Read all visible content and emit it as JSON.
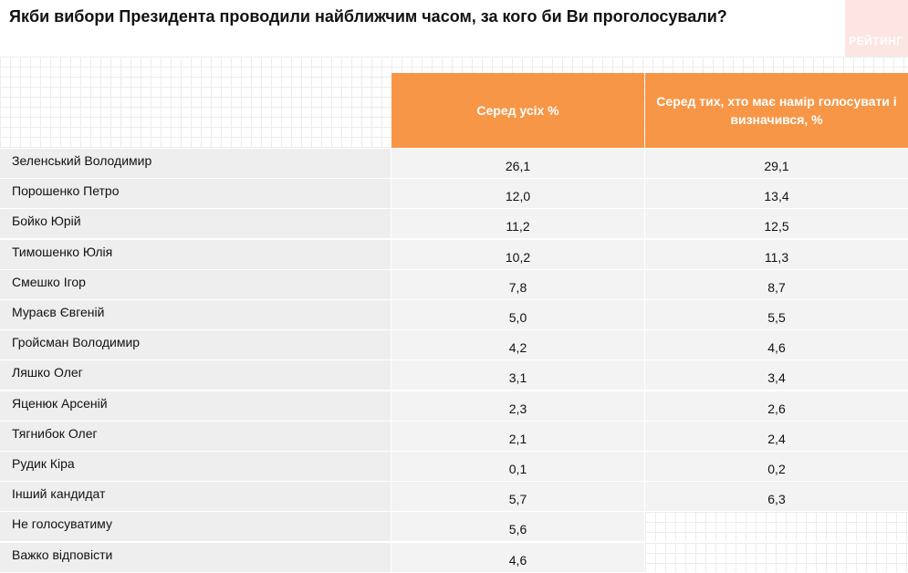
{
  "title": "Якби вибори Президента проводили найближчим часом, за кого би Ви проголосували?",
  "logo": {
    "text": "РЕЙТИНГ"
  },
  "table": {
    "col1_header": "Серед усіх %",
    "col2_header_line1": "Серед тих, хто має намір голосувати і",
    "col2_header_line2": "визначився, %"
  },
  "colors": {
    "header": "#f79646",
    "row_bg": "#eeeeee",
    "logo_bg": "#fde5e4"
  },
  "chart_data": {
    "type": "table",
    "columns": [
      "Серед усіх %",
      "Серед тих, хто має намір голосувати і визначився, %"
    ],
    "rows": [
      {
        "name": "Зеленський Володимир",
        "v1": "26,1",
        "v2": "29,1"
      },
      {
        "name": "Порошенко Петро",
        "v1": "12,0",
        "v2": "13,4"
      },
      {
        "name": "Бойко Юрій",
        "v1": "11,2",
        "v2": "12,5"
      },
      {
        "name": "Тимошенко Юлія",
        "v1": "10,2",
        "v2": "11,3"
      },
      {
        "name": "Смешко Ігор",
        "v1": "7,8",
        "v2": "8,7"
      },
      {
        "name": "Мураєв Євгеній",
        "v1": "5,0",
        "v2": "5,5"
      },
      {
        "name": "Гройсман Володимир",
        "v1": "4,2",
        "v2": "4,6"
      },
      {
        "name": "Ляшко Олег",
        "v1": "3,1",
        "v2": "3,4"
      },
      {
        "name": "Яценюк  Арсеній",
        "v1": "2,3",
        "v2": "2,6"
      },
      {
        "name": "Тягнибок Олег",
        "v1": "2,1",
        "v2": "2,4"
      },
      {
        "name": "Рудик Кіра",
        "v1": "0,1",
        "v2": "0,2"
      },
      {
        "name": "Інший кандидат",
        "v1": "5,7",
        "v2": "6,3"
      },
      {
        "name": "Не голосуватиму",
        "v1": "5,6",
        "v2": null
      },
      {
        "name": "Важко відповісти",
        "v1": "4,6",
        "v2": null
      }
    ]
  }
}
